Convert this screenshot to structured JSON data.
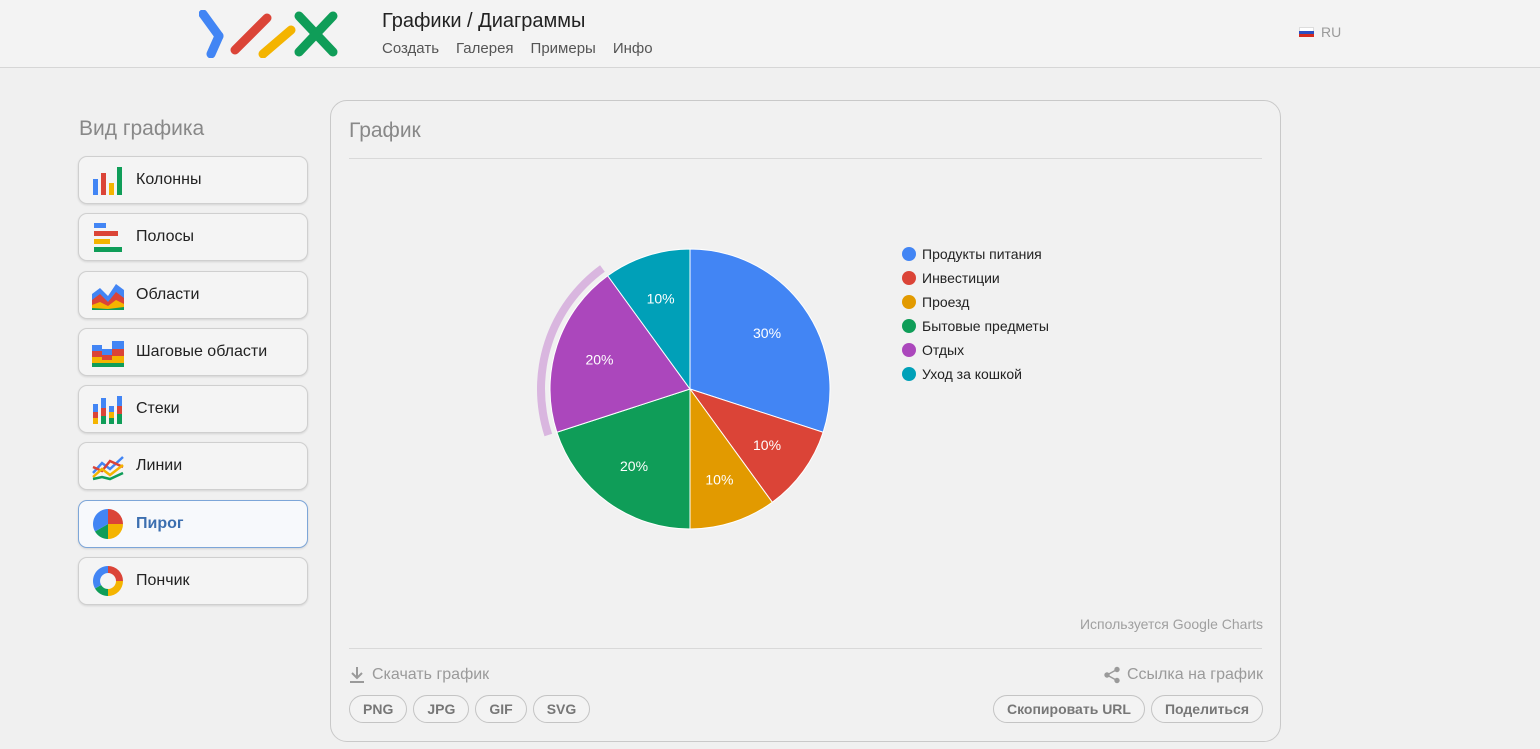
{
  "header": {
    "title": "Графики / Диаграммы",
    "nav": [
      "Создать",
      "Галерея",
      "Примеры",
      "Инфо"
    ],
    "language": "RU"
  },
  "sidebar": {
    "title": "Вид графика",
    "items": [
      {
        "label": "Колонны",
        "icon": "column-chart-icon"
      },
      {
        "label": "Полосы",
        "icon": "bar-chart-icon"
      },
      {
        "label": "Области",
        "icon": "area-chart-icon"
      },
      {
        "label": "Шаговые области",
        "icon": "stepped-area-chart-icon"
      },
      {
        "label": "Стеки",
        "icon": "stacked-chart-icon"
      },
      {
        "label": "Линии",
        "icon": "line-chart-icon"
      },
      {
        "label": "Пирог",
        "icon": "pie-chart-icon",
        "active": true
      },
      {
        "label": "Пончик",
        "icon": "donut-chart-icon"
      }
    ]
  },
  "panel": {
    "title": "График",
    "attribution": "Используется Google Charts",
    "download_label": "Скачать график",
    "share_label": "Ссылка на график",
    "formats": [
      "PNG",
      "JPG",
      "GIF",
      "SVG"
    ],
    "copy_url": "Скопировать URL",
    "share": "Поделиться"
  },
  "chart_data": {
    "type": "pie",
    "categories": [
      "Продукты питания",
      "Инвестиции",
      "Проезд",
      "Бытовые предметы",
      "Отдых",
      "Уход за кошкой"
    ],
    "values": [
      30,
      10,
      10,
      20,
      20,
      10
    ],
    "labels": [
      "30%",
      "10%",
      "10%",
      "20%",
      "20%",
      "10%"
    ],
    "colors": [
      "#4285f4",
      "#db4437",
      "#e29a00",
      "#0f9d58",
      "#ab47bc",
      "#00a0b8"
    ],
    "highlighted": "Отдых",
    "legend": "right",
    "title": "",
    "xlabel": "",
    "ylabel": ""
  },
  "colors": {
    "accent": "#3c6fb0",
    "logo": [
      "#4285f4",
      "#db4437",
      "#f4b400",
      "#0f9d58"
    ]
  }
}
